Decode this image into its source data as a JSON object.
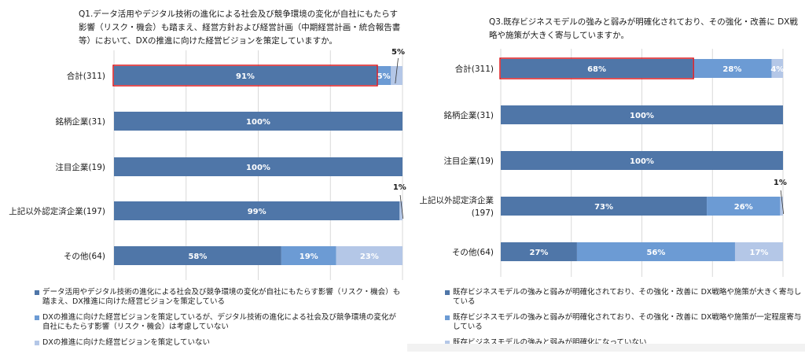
{
  "colors": {
    "series_1": "#4f76a8",
    "series_2": "#6c9bd4",
    "series_3": "#b4c7e7",
    "highlight_border": "#d9161c",
    "bar_text": "#ffffff",
    "grid": "#d9d9d9"
  },
  "chart_data": [
    {
      "type": "bar",
      "orientation": "horizontal",
      "stacked": true,
      "title": "Q1.データ活用やデジタル技術の進化による社会及び競争環境の変化が自社にもたらす影響（リスク・機会）も踏まえ、経営方針および経営計画（中期経営計画・統合報告書等）において、DXの推進に向けた経営ビジョンを策定していますか。",
      "categories": [
        "合計(311)",
        "銘柄企業(31)",
        "注目企業(19)",
        "上記以外認定済企業(197)",
        "その他(64)"
      ],
      "xlim": [
        0,
        100
      ],
      "series": [
        {
          "name": "データ活用やデジタル技術の進化による社会及び競争環境の変化が自社にもたらす影響（リスク・機会）も踏まえ、DX推進に向けた経営ビジョンを策定している",
          "values": [
            91,
            100,
            100,
            99,
            58
          ]
        },
        {
          "name": "DXの推進に向けた経営ビジョンを策定しているが、デジタル技術の進化による社会及び競争環境の変化が自社にもたらす影響（リスク・機会）は考慮していない",
          "values": [
            5,
            0,
            0,
            0,
            19
          ]
        },
        {
          "name": "DXの推進に向けた経営ビジョンを策定していない",
          "values": [
            4,
            0,
            0,
            1,
            23
          ]
        }
      ],
      "data_labels": [
        [
          "91%",
          "100%",
          "100%",
          "99%",
          "58%"
        ],
        [
          "5%",
          "",
          "",
          "",
          "19%"
        ],
        [
          "",
          "",
          "",
          "",
          "23%"
        ]
      ],
      "callouts": [
        {
          "category_index": 0,
          "label": "5%"
        },
        {
          "category_index": 3,
          "label": "1%"
        }
      ],
      "highlight": {
        "category_index": 0,
        "series_index": 0
      },
      "grid": true,
      "legend": "bottom"
    },
    {
      "type": "bar",
      "orientation": "horizontal",
      "stacked": true,
      "title": "Q3.既存ビジネスモデルの強みと弱みが明確化されており、その強化・改善に DX戦略や施策が大きく寄与していますか。",
      "categories": [
        "合計(311)",
        "銘柄企業(31)",
        "注目企業(19)",
        "上記以外認定済企業\n(197)",
        "その他(64)"
      ],
      "xlim": [
        0,
        100
      ],
      "series": [
        {
          "name": "既存ビジネスモデルの強みと弱みが明確化されており、その強化・改善に DX戦略や施策が大きく寄与している",
          "values": [
            68,
            100,
            100,
            73,
            27
          ]
        },
        {
          "name": "既存ビジネスモデルの強みと弱みが明確化されており、その強化・改善に DX戦略や施策が一定程度寄与している",
          "values": [
            28,
            0,
            0,
            26,
            56
          ]
        },
        {
          "name": "既存ビジネスモデルの強みと弱みが明確化になっていない",
          "values": [
            4,
            0,
            0,
            1,
            17
          ]
        }
      ],
      "data_labels": [
        [
          "68%",
          "100%",
          "100%",
          "73%",
          "27%"
        ],
        [
          "28%",
          "",
          "",
          "26%",
          "56%"
        ],
        [
          "4%",
          "",
          "",
          "",
          "17%"
        ]
      ],
      "callouts": [
        {
          "category_index": 3,
          "label": "1%"
        }
      ],
      "highlight": {
        "category_index": 0,
        "series_index": 0
      },
      "grid": true,
      "legend": "bottom"
    }
  ]
}
